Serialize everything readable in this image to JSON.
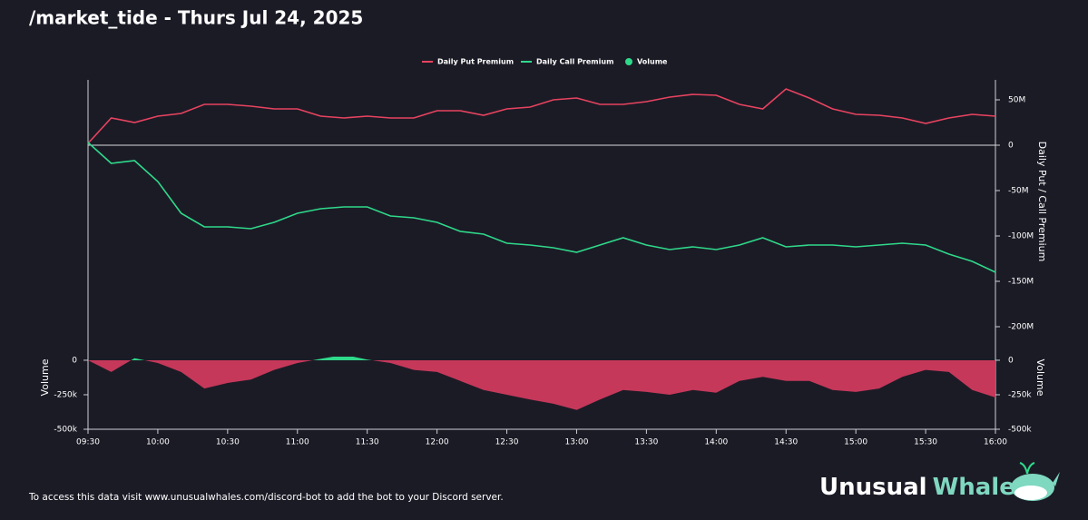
{
  "title": "/market_tide - Thurs Jul 24, 2025",
  "footer": "To access this data visit www.unusualwhales.com/discord-bot to add the bot to your Discord server.",
  "brand": {
    "first": "Unusual",
    "second": "Whales"
  },
  "chart_data": [
    {
      "type": "line",
      "y2label": "Daily Put / Call Premium",
      "legend": "top",
      "x": [
        570,
        580,
        590,
        600,
        610,
        620,
        630,
        640,
        650,
        660,
        670,
        680,
        690,
        700,
        710,
        720,
        730,
        740,
        750,
        760,
        770,
        780,
        790,
        800,
        810,
        820,
        830,
        840,
        850,
        860,
        870,
        880,
        890,
        900,
        910,
        920,
        930,
        940,
        950,
        960
      ],
      "xlim": [
        570,
        960
      ],
      "series": [
        {
          "name": "Daily Put Premium",
          "color": "#e8435f",
          "axis": "y2",
          "values": [
            2,
            30,
            25,
            32,
            35,
            45,
            45,
            43,
            40,
            40,
            32,
            30,
            32,
            30,
            30,
            38,
            38,
            33,
            40,
            42,
            50,
            52,
            45,
            45,
            48,
            53,
            56,
            55,
            45,
            40,
            62,
            52,
            40,
            34,
            33,
            30,
            24,
            30,
            34,
            32
          ]
        },
        {
          "name": "Daily Call Premium",
          "color": "#2fd98a",
          "axis": "y2",
          "values": [
            3,
            -20,
            -17,
            -40,
            -75,
            -90,
            -90,
            -92,
            -85,
            -75,
            -70,
            -68,
            -68,
            -78,
            -80,
            -85,
            -95,
            -98,
            -108,
            -110,
            -113,
            -118,
            -110,
            -102,
            -110,
            -115,
            -112,
            -115,
            -110,
            -102,
            -112,
            -110,
            -110,
            -112,
            -110,
            -108,
            -110,
            -120,
            -128,
            -140
          ]
        }
      ],
      "y2lim": [
        -233,
        72
      ],
      "y2ticks": [
        {
          "value": 50,
          "label": "50M"
        },
        0,
        {
          "value": -50,
          "label": "-50M"
        },
        {
          "value": -100,
          "label": "-100M"
        },
        {
          "value": -150,
          "label": "-150M"
        },
        {
          "value": -200,
          "label": "-200M"
        }
      ],
      "zero_line": true
    },
    {
      "type": "area",
      "ylabel": "Volume",
      "x": [
        570,
        580,
        590,
        600,
        610,
        620,
        630,
        640,
        650,
        660,
        670,
        680,
        690,
        700,
        710,
        720,
        730,
        740,
        750,
        760,
        770,
        780,
        790,
        800,
        810,
        820,
        830,
        840,
        850,
        860,
        870,
        880,
        890,
        900,
        910,
        920,
        930,
        940,
        950,
        960
      ],
      "xlim": [
        570,
        960
      ],
      "xticks": [
        {
          "value": 570,
          "label": "09:30"
        },
        {
          "value": 600,
          "label": "10:00"
        },
        {
          "value": 630,
          "label": "10:30"
        },
        {
          "value": 660,
          "label": "11:00"
        },
        {
          "value": 690,
          "label": "11:30"
        },
        {
          "value": 720,
          "label": "12:00"
        },
        {
          "value": 750,
          "label": "12:30"
        },
        {
          "value": 780,
          "label": "13:00"
        },
        {
          "value": 810,
          "label": "13:30"
        },
        {
          "value": 840,
          "label": "14:00"
        },
        {
          "value": 870,
          "label": "14:30"
        },
        {
          "value": 900,
          "label": "15:00"
        },
        {
          "value": 930,
          "label": "15:30"
        },
        {
          "value": 960,
          "label": "16:00"
        }
      ],
      "series": [
        {
          "name": "Volume",
          "color": "#2fd98a",
          "negative_color": "#c5385a",
          "values": [
            0,
            -85,
            15,
            -20,
            -85,
            -205,
            -165,
            -140,
            -70,
            -20,
            10,
            40,
            5,
            -20,
            -70,
            -85,
            -150,
            -215,
            -250,
            -285,
            -315,
            -360,
            -285,
            -215,
            -230,
            -250,
            -215,
            -235,
            -150,
            -120,
            -150,
            -150,
            -215,
            -230,
            -205,
            -120,
            -70,
            -85,
            -215,
            -270
          ]
        }
      ],
      "ylim": [
        -500,
        26
      ],
      "yticks": [
        0,
        {
          "value": -250,
          "label": "-250k"
        },
        {
          "value": -500,
          "label": "-500k"
        }
      ]
    }
  ]
}
